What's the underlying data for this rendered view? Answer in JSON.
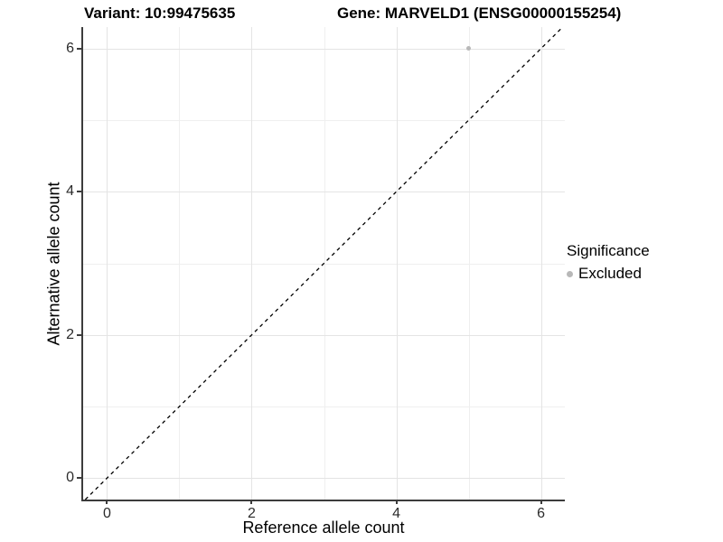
{
  "titles": {
    "variant": "Variant: 10:99475635",
    "gene": "Gene: MARVELD1 (ENSG00000155254)"
  },
  "legend": {
    "title": "Significance",
    "position": "right",
    "items": [
      {
        "label": "Excluded",
        "color": "#b8b8b8"
      }
    ]
  },
  "chart_data": {
    "type": "scatter",
    "xlabel": "Reference allele count",
    "ylabel": "Alternative allele count",
    "xlim": [
      -0.33,
      6.33
    ],
    "ylim": [
      -0.3,
      6.3
    ],
    "x_ticks": [
      0,
      2,
      4,
      6
    ],
    "y_ticks": [
      0,
      2,
      4,
      6
    ],
    "x_grid_major": [
      0,
      2,
      4,
      6
    ],
    "x_grid_minor": [
      1,
      3,
      5
    ],
    "y_grid_major": [
      0,
      2,
      4,
      6
    ],
    "y_grid_minor": [
      1,
      3,
      5
    ],
    "grid": true,
    "points": [
      {
        "x": 5,
        "y": 6,
        "series": "Excluded",
        "color": "#b8b8b8",
        "size": 5
      }
    ],
    "reference_line": {
      "kind": "identity",
      "equation": "y = x",
      "style": "dashed",
      "color": "#000000"
    },
    "colors": {
      "grid_major": "#e4e4e4",
      "grid_minor": "#efefef",
      "axis_line": "#3c3c3c",
      "tick_text": "#2b2b2b"
    }
  }
}
